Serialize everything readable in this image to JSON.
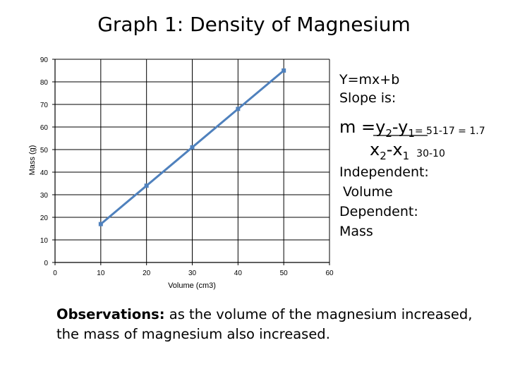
{
  "chart_data": {
    "type": "scatter",
    "title": "Graph 1: Density of Magnesium",
    "xlabel": "Volume (cm3)",
    "ylabel": "Mass (g)",
    "xlim": [
      0,
      60
    ],
    "ylim": [
      0,
      90
    ],
    "x_ticks": [
      0,
      10,
      20,
      30,
      40,
      50,
      60
    ],
    "y_ticks": [
      0,
      10,
      20,
      30,
      40,
      50,
      60,
      70,
      80,
      90
    ],
    "grid": true,
    "series": [
      {
        "x": [
          10,
          20,
          30,
          40,
          50
        ],
        "y": [
          17,
          34,
          51,
          68,
          85
        ],
        "color": "#4f81bd"
      }
    ]
  },
  "notes": {
    "equation": "Y=mx+b",
    "slope_label": "Slope is:",
    "formula": {
      "m_eq": "m =y",
      "sub2": "2",
      "dash": "-y",
      "sub1": "1",
      "eq_frac": "= 51-17 = 1.7",
      "x2": "x",
      "x_sub2": "2",
      "x_dash": "-x",
      "x_sub1": "1",
      "denom": "30-10"
    },
    "independent_label": "Independent:",
    "independent_value": "Volume",
    "dependent_label": "Dependent:",
    "dependent_value": "Mass"
  },
  "observations": {
    "label": "Observations:",
    "text": " as the volume of the magnesium increased, the mass of magnesium also increased."
  }
}
